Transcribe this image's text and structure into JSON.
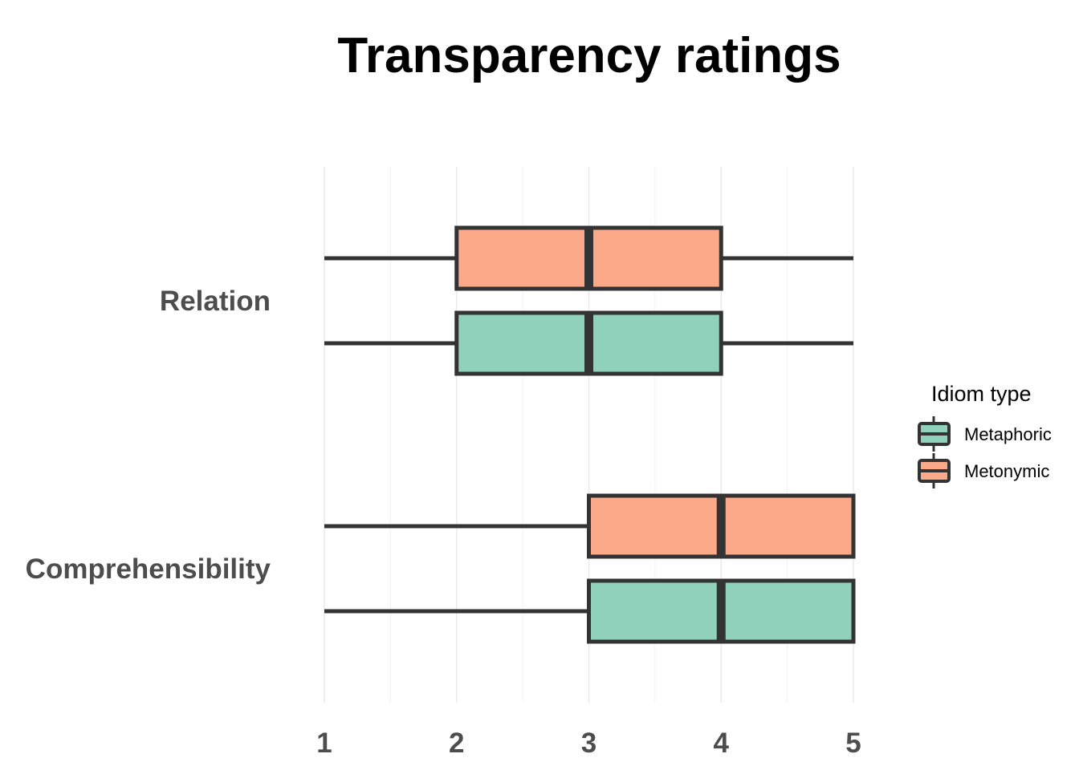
{
  "chart_data": {
    "type": "boxplot",
    "title": "Transparency ratings",
    "xlabel": "",
    "ylabel": "",
    "categories": [
      "Relation",
      "Comprehensibility"
    ],
    "x_ticks": [
      1,
      2,
      3,
      4,
      5
    ],
    "xlim": [
      1,
      5
    ],
    "grid": true,
    "legend": {
      "title": "Idiom type",
      "position": "right"
    },
    "series": [
      {
        "name": "Metaphoric",
        "color": "#8fd1bb",
        "boxes": [
          {
            "category": "Relation",
            "min": 1,
            "q1": 2,
            "median": 3,
            "q3": 4,
            "max": 5
          },
          {
            "category": "Comprehensibility",
            "min": 1,
            "q1": 3,
            "median": 4,
            "q3": 5,
            "max": 5
          }
        ]
      },
      {
        "name": "Metonymic",
        "color": "#fca98a",
        "boxes": [
          {
            "category": "Relation",
            "min": 1,
            "q1": 2,
            "median": 3,
            "q3": 4,
            "max": 5
          },
          {
            "category": "Comprehensibility",
            "min": 1,
            "q1": 3,
            "median": 4,
            "q3": 5,
            "max": 5
          }
        ]
      }
    ]
  }
}
